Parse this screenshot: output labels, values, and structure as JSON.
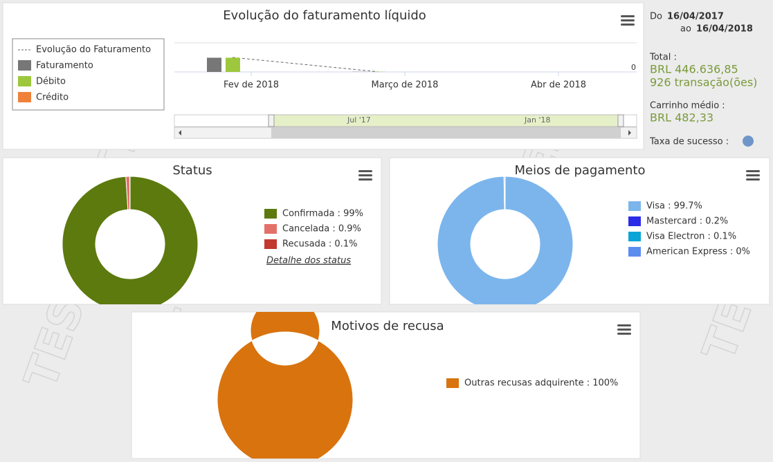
{
  "watermark": "TEST",
  "summary": {
    "from_label": "Do",
    "from_date": "16/04/2017",
    "to_label": "ao",
    "to_date": "16/04/2018",
    "total_label": "Total :",
    "total_value": "BRL 446.636,85",
    "transactions": "926 transação(ões)",
    "cart_label": "Carrinho médio :",
    "cart_value": "BRL 482,33",
    "success_label": "Taxa de sucesso :"
  },
  "chart_data": [
    {
      "type": "bar",
      "title": "Evolução do faturamento líquido",
      "categories": [
        null,
        null
      ],
      "series": [
        {
          "name": "Evolução do Faturamento",
          "type": "line",
          "color": "#666666",
          "values": [
            450000,
            6000
          ]
        },
        {
          "name": "Faturamento",
          "color": "#777777",
          "values": [
            440000,
            6000
          ]
        },
        {
          "name": "Débito",
          "color": "#9dc83d",
          "values": [
            440000,
            6000
          ]
        },
        {
          "name": "Crédito",
          "color": "#f0813a",
          "values": [
            0,
            0
          ]
        }
      ],
      "x_labels": [
        "Fev de 2018",
        "Março de 2018",
        "Abr de 2018"
      ],
      "ylim": [
        0,
        900000
      ],
      "yticks": [
        0
      ],
      "navigator_labels": [
        "Jul '17",
        "Jan '18"
      ]
    },
    {
      "type": "pie",
      "title": "Status",
      "labels": [
        "Confirmada : 99%",
        "Cancelada : 0.9%",
        "Recusada : 0.1%"
      ],
      "values": [
        99,
        0.9,
        0.1
      ],
      "colors": [
        "#5c7a0e",
        "#e4706a",
        "#c2392e"
      ],
      "link": "Detalhe dos status"
    },
    {
      "type": "pie",
      "title": "Meios de pagamento",
      "labels": [
        "Visa : 99.7%",
        "Mastercard : 0.2%",
        "Visa Electron : 0.1%",
        "American Express : 0%"
      ],
      "values": [
        99.7,
        0.2,
        0.1,
        0
      ],
      "colors": [
        "#7cb5ec",
        "#2b2be8",
        "#0aa5d6",
        "#5b8def"
      ]
    },
    {
      "type": "pie",
      "title": "Motivos de recusa",
      "labels": [
        "Outras recusas adquirente : 100%"
      ],
      "values": [
        100
      ],
      "colors": [
        "#d9730e"
      ]
    }
  ]
}
